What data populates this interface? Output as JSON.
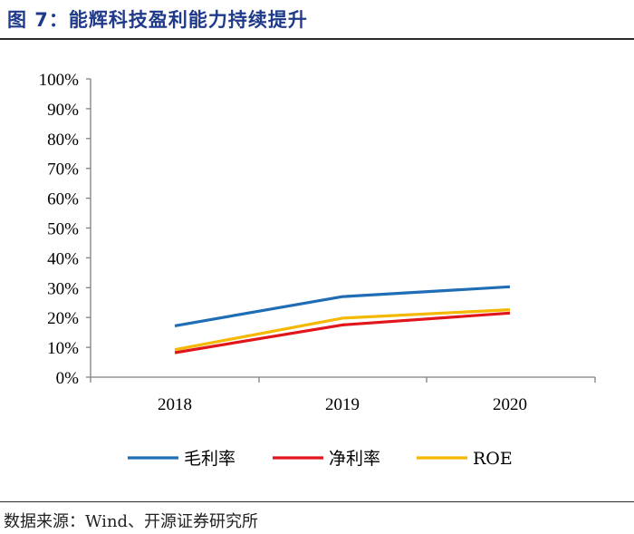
{
  "header": {
    "title": "图 7：能辉科技盈利能力持续提升"
  },
  "footer": {
    "source": "数据来源：Wind、开源证券研究所"
  },
  "chart_data": {
    "type": "line",
    "title": "图 7：能辉科技盈利能力持续提升",
    "categories": [
      "2018",
      "2019",
      "2020"
    ],
    "xlabel": "",
    "ylabel": "",
    "ylim": [
      0,
      100
    ],
    "y_ticks": [
      0,
      10,
      20,
      30,
      40,
      50,
      60,
      70,
      80,
      90,
      100
    ],
    "y_tick_labels": [
      "0%",
      "10%",
      "20%",
      "30%",
      "40%",
      "50%",
      "60%",
      "70%",
      "80%",
      "90%",
      "100%"
    ],
    "grid": false,
    "legend_position": "bottom",
    "series": [
      {
        "name": "毛利率",
        "color": "#1f6db5",
        "values": [
          17.2,
          27.0,
          30.3
        ]
      },
      {
        "name": "净利率",
        "color": "#e0161b",
        "values": [
          8.2,
          17.5,
          21.5
        ]
      },
      {
        "name": "ROE",
        "color": "#f5b800",
        "values": [
          9.2,
          19.8,
          22.6
        ]
      }
    ]
  }
}
